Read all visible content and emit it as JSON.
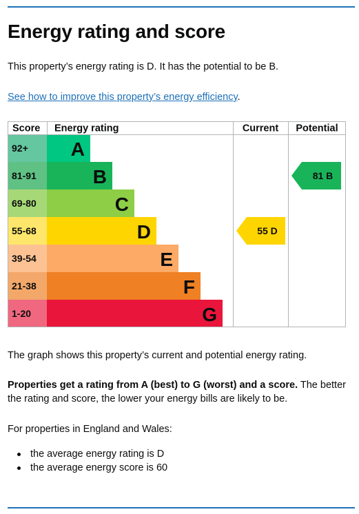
{
  "page": {
    "title": "Energy rating and score",
    "intro": "This property’s energy rating is D. It has the potential to be B.",
    "improve_link": "See how to improve this property’s energy efficiency",
    "improve_link_suffix": ".",
    "graph_caption": "The graph shows this property’s current and potential energy rating.",
    "rating_bold": "Properties get a rating from A (best) to G (worst) and a score.",
    "rating_rest": " The better the rating and score, the lower your energy bills are likely to be.",
    "region_note": "For properties in England and Wales:",
    "bullets": [
      "the average energy rating is D",
      "the average energy score is 60"
    ]
  },
  "chart_data": {
    "type": "bar",
    "headers": {
      "score": "Score",
      "rating": "Energy rating",
      "current": "Current",
      "potential": "Potential"
    },
    "bands": [
      {
        "score": "92+",
        "letter": "A",
        "color": "#00c781",
        "score_bg": "#64c7a0"
      },
      {
        "score": "81-91",
        "letter": "B",
        "color": "#19b459",
        "score_bg": "#5fc183"
      },
      {
        "score": "69-80",
        "letter": "C",
        "color": "#8dce46",
        "score_bg": "#a7d878"
      },
      {
        "score": "55-68",
        "letter": "D",
        "color": "#ffd500",
        "score_bg": "#fde66b"
      },
      {
        "score": "39-54",
        "letter": "E",
        "color": "#fcaa65",
        "score_bg": "#fcc293"
      },
      {
        "score": "21-38",
        "letter": "F",
        "color": "#ef8023",
        "score_bg": "#f3a86a"
      },
      {
        "score": "1-20",
        "letter": "G",
        "color": "#e9153b",
        "score_bg": "#f0687f"
      }
    ],
    "current": {
      "score": 55,
      "letter": "D",
      "label": "55  D",
      "band_index": 3,
      "color": "#ffd500"
    },
    "potential": {
      "score": 81,
      "letter": "B",
      "label": "81  B",
      "band_index": 1,
      "color": "#19b459"
    }
  }
}
